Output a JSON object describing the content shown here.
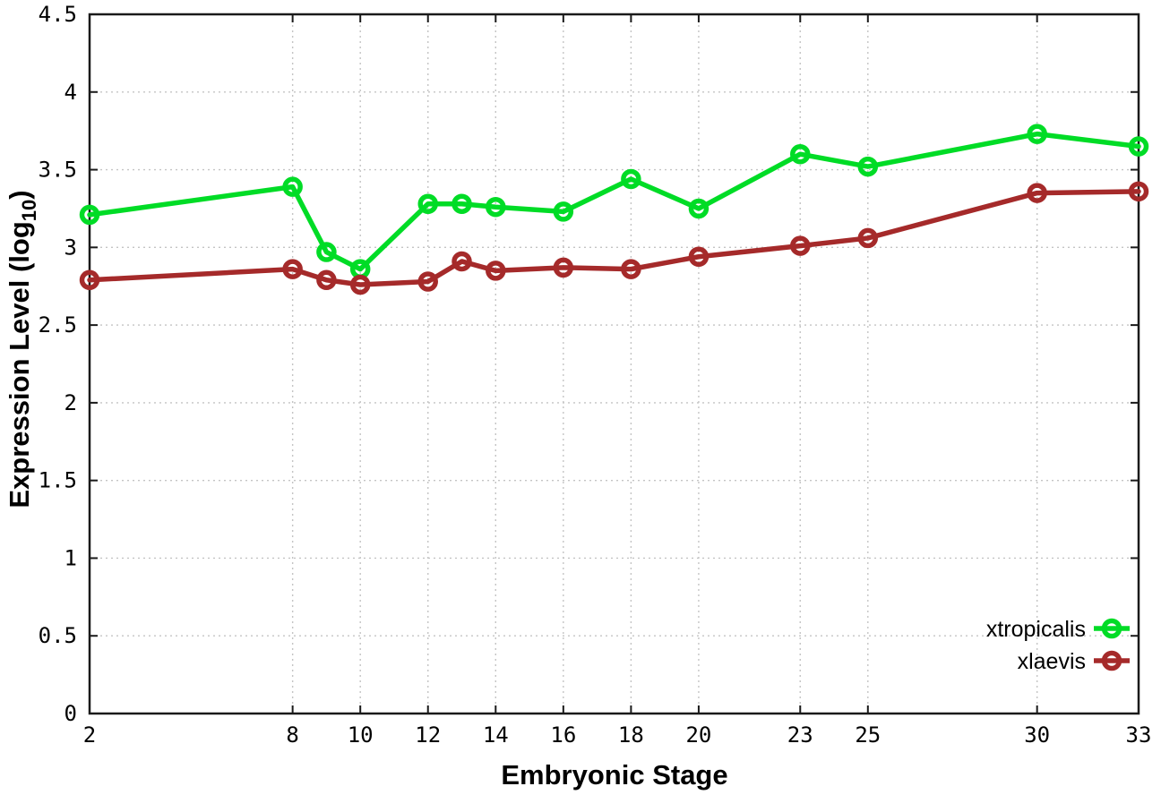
{
  "chart_data": {
    "type": "line",
    "title": "",
    "xlabel": "Embryonic Stage",
    "ylabel": "Expression Level (log10)",
    "ylabel_parts": {
      "main": "Expression Level (log",
      "sub": "10",
      "end": ")"
    },
    "x": [
      2,
      8,
      9,
      10,
      12,
      13,
      14,
      16,
      18,
      20,
      23,
      25,
      30,
      33
    ],
    "series": [
      {
        "name": "xtropicalis",
        "color": "#00dc26",
        "values": [
          3.21,
          3.39,
          2.97,
          2.86,
          3.28,
          3.28,
          3.26,
          3.23,
          3.44,
          3.25,
          3.6,
          3.52,
          3.73,
          3.65
        ]
      },
      {
        "name": "xlaevis",
        "color": "#a52a2a",
        "values": [
          2.79,
          2.86,
          2.79,
          2.76,
          2.78,
          2.91,
          2.85,
          2.87,
          2.86,
          2.94,
          3.01,
          3.06,
          3.35,
          3.36
        ]
      }
    ],
    "xlim": [
      2,
      33
    ],
    "ylim": [
      0,
      4.5
    ],
    "xticks": {
      "values": [
        2,
        8,
        10,
        12,
        14,
        16,
        18,
        20,
        23,
        25,
        30,
        33
      ],
      "labels": [
        "2",
        "8",
        "10",
        "12",
        "14",
        "16",
        "18",
        "20",
        "23",
        "25",
        "30",
        "33"
      ]
    },
    "yticks": {
      "values": [
        0,
        0.5,
        1,
        1.5,
        2,
        2.5,
        3,
        3.5,
        4,
        4.5
      ],
      "labels": [
        "0",
        "0.5",
        "1",
        "1.5",
        "2",
        "2.5",
        "3",
        "3.5",
        "4",
        "4.5"
      ]
    },
    "grid": true,
    "legend_position": "bottom-right",
    "marker": "open-circle",
    "colors": {
      "grid": "#c4c4c4",
      "axis": "#1a1a1a",
      "background": "#ffffff",
      "text": "#000000"
    }
  }
}
